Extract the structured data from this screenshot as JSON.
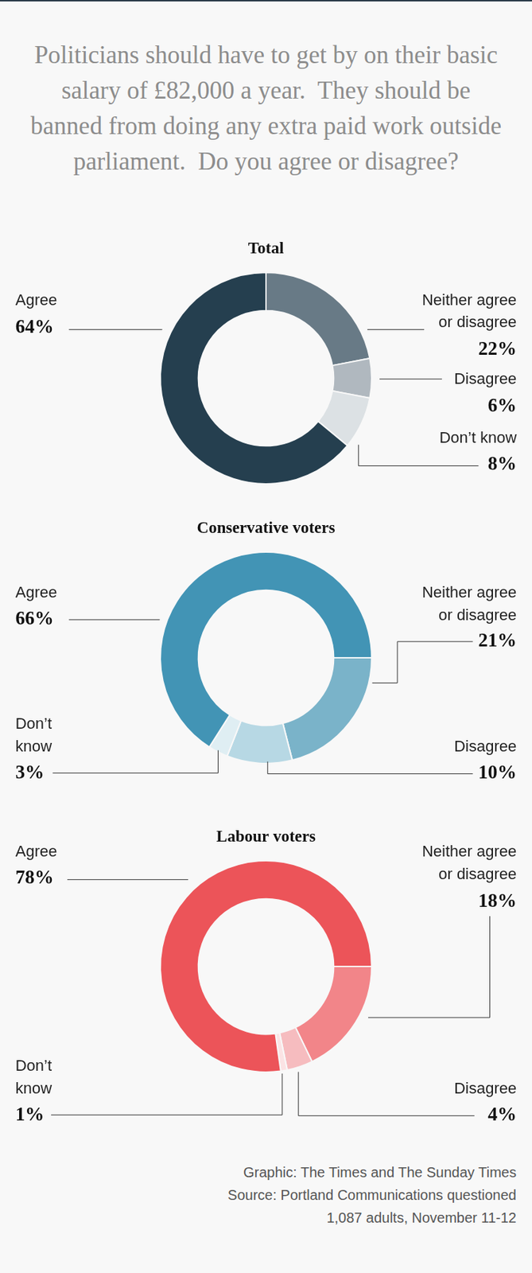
{
  "title": "Politicians should have to get by on their basic salary of £82,000 a year.  They should be banned from doing any extra paid work outside parliament.  Do you agree or disagree?",
  "chart_data": [
    {
      "type": "doughnut",
      "title": "Total",
      "categories": [
        "Neither agree or disagree",
        "Disagree",
        "Don’t know",
        "Agree"
      ],
      "values": [
        22,
        6,
        8,
        64
      ],
      "value_labels": [
        "22%",
        "6%",
        "8%",
        "64%"
      ],
      "colors": [
        "#687a86",
        "#b0b8bf",
        "#dce1e4",
        "#253f4f"
      ],
      "data_labels": true
    },
    {
      "type": "doughnut",
      "title": "Conservative voters",
      "categories": [
        "Neither agree or disagree",
        "Disagree",
        "Don’t know",
        "Agree"
      ],
      "values": [
        21,
        10,
        3,
        66
      ],
      "value_labels": [
        "21%",
        "10%",
        "3%",
        "66%"
      ],
      "colors": [
        "#7ab3c9",
        "#b7d8e4",
        "#dfeef3",
        "#4294b5"
      ],
      "data_labels": true
    },
    {
      "type": "doughnut",
      "title": "Labour voters",
      "categories": [
        "Neither agree or disagree",
        "Disagree",
        "Don’t know",
        "Agree"
      ],
      "values": [
        18,
        4,
        1,
        78
      ],
      "value_labels": [
        "18%",
        "4%",
        "1%",
        "78%"
      ],
      "colors": [
        "#f28589",
        "#f6bcbf",
        "#fbe3e4",
        "#ec5459"
      ],
      "data_labels": true
    }
  ],
  "credits": [
    "Graphic: The Times and The Sunday Times",
    "Source: Portland Communications questioned",
    "1,087 adults, November 11-12"
  ]
}
